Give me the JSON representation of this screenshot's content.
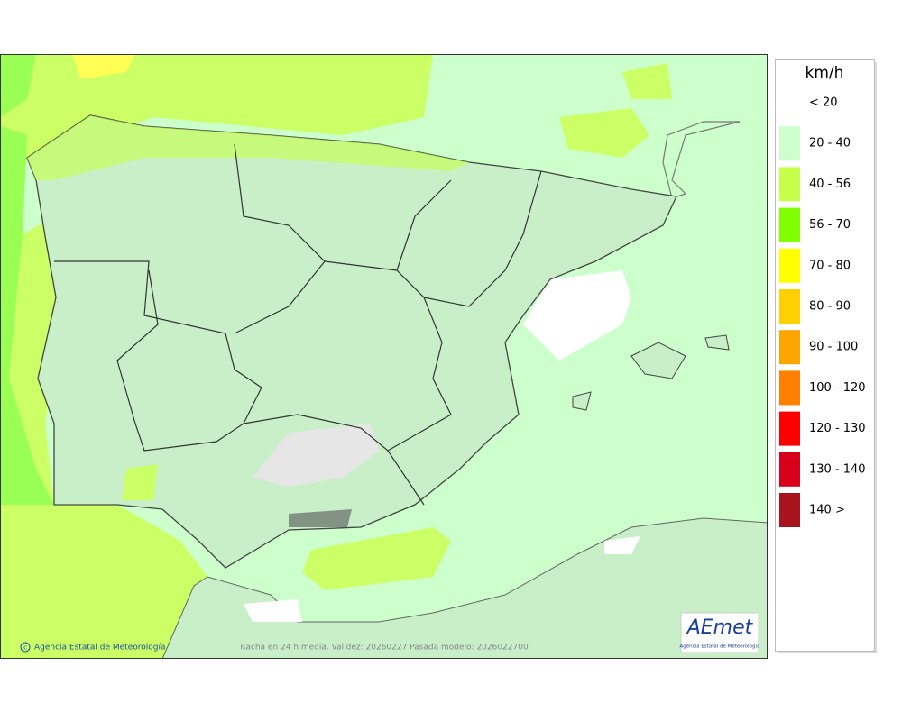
{
  "legend": {
    "title": "km/h",
    "items": [
      {
        "label": "< 20"
      },
      {
        "label": "20 - 40",
        "color": "#ccffcc"
      },
      {
        "label": "40 - 56",
        "color": "#c6ff4a"
      },
      {
        "label": "56 - 70",
        "color": "#80ff00"
      },
      {
        "label": "70 - 80",
        "color": "#ffff00"
      },
      {
        "label": "80 - 90",
        "color": "#ffd000"
      },
      {
        "label": "90 - 100",
        "color": "#ffa500"
      },
      {
        "label": "100 - 120",
        "color": "#ff8000"
      },
      {
        "label": "120 - 130",
        "color": "#ff0000"
      },
      {
        "label": "130 - 140",
        "color": "#d8001a"
      },
      {
        "label": "140 >",
        "color": "#a8141e"
      }
    ]
  },
  "footer": {
    "credit": "Agencia Estatal de Meteorología",
    "caption": "Racha en 24 h media. Validez: 20260227 Pasada modelo: 2026022700"
  },
  "logo": {
    "name": "AEmet",
    "subtitle": "Agencia Estatal de Meteorología"
  }
}
